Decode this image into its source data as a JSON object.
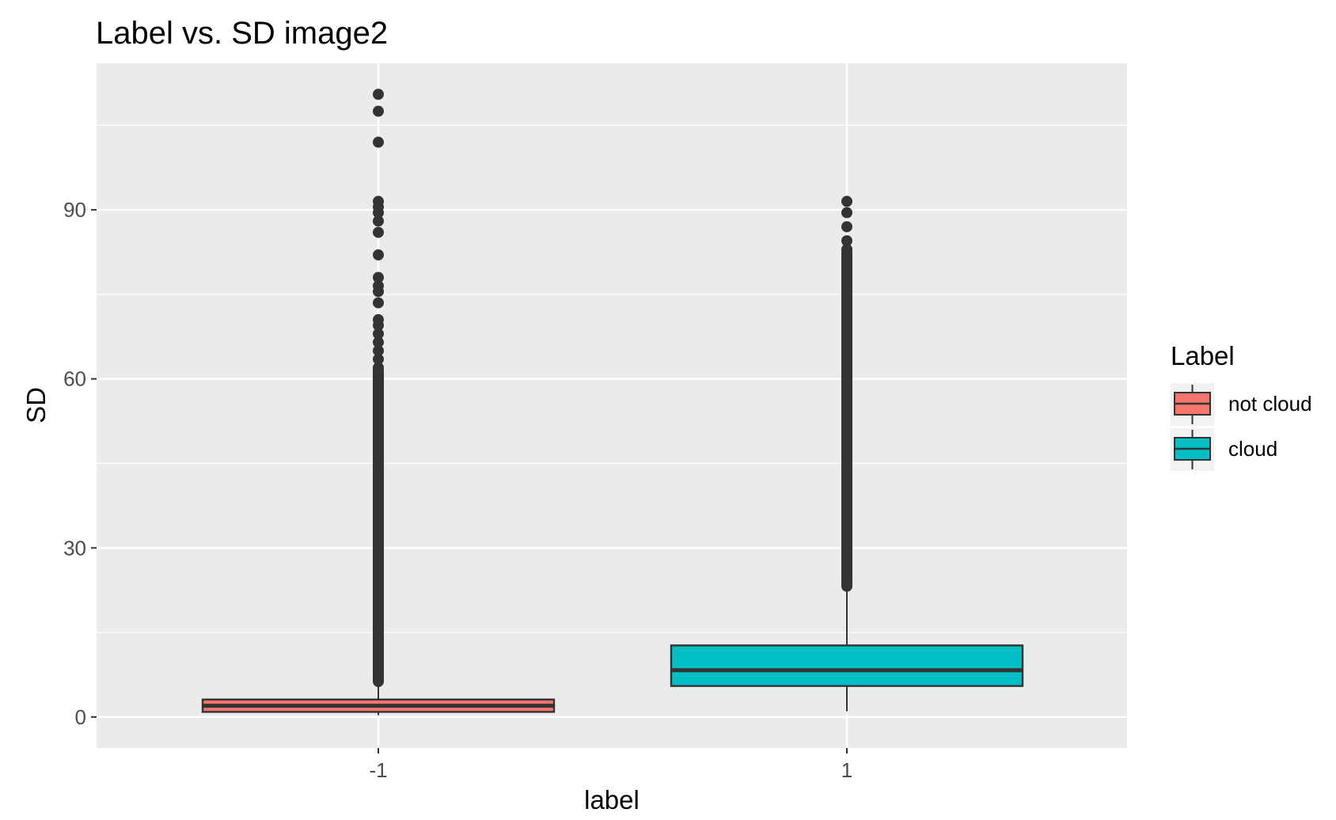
{
  "chart_data": {
    "type": "boxplot",
    "title": "Label vs. SD image2",
    "xlabel": "label",
    "ylabel": "SD",
    "categories": [
      "-1",
      "1"
    ],
    "y_ticks": [
      0,
      30,
      60,
      90
    ],
    "ylim": [
      -5.5,
      116
    ],
    "grid": true,
    "legend": {
      "title": "Label",
      "position": "right",
      "entries": [
        {
          "label": "not cloud",
          "color": "#F8766D"
        },
        {
          "label": "cloud",
          "color": "#00BFC4"
        }
      ]
    },
    "boxes": [
      {
        "category": "-1",
        "series": "not cloud",
        "color": "#F8766D",
        "min": 0.3,
        "q1": 0.9,
        "median": 2.0,
        "q3": 3.1,
        "whisker_high": 6.3,
        "outliers_dense_range": [
          6.3,
          61.5
        ],
        "outliers": [
          62,
          63.5,
          65,
          66.5,
          68,
          69.5,
          70.5,
          73.5,
          75.5,
          76.5,
          78,
          82,
          86,
          88,
          89.5,
          90.5,
          91.5,
          102,
          107.5,
          110.5
        ]
      },
      {
        "category": "1",
        "series": "cloud",
        "color": "#00BFC4",
        "min": 1.0,
        "q1": 5.5,
        "median": 8.3,
        "q3": 12.7,
        "whisker_high": 23.2,
        "outliers_dense_range": [
          23.2,
          82.5
        ],
        "outliers": [
          83,
          84.5,
          87,
          89.5,
          91.5
        ]
      }
    ]
  }
}
